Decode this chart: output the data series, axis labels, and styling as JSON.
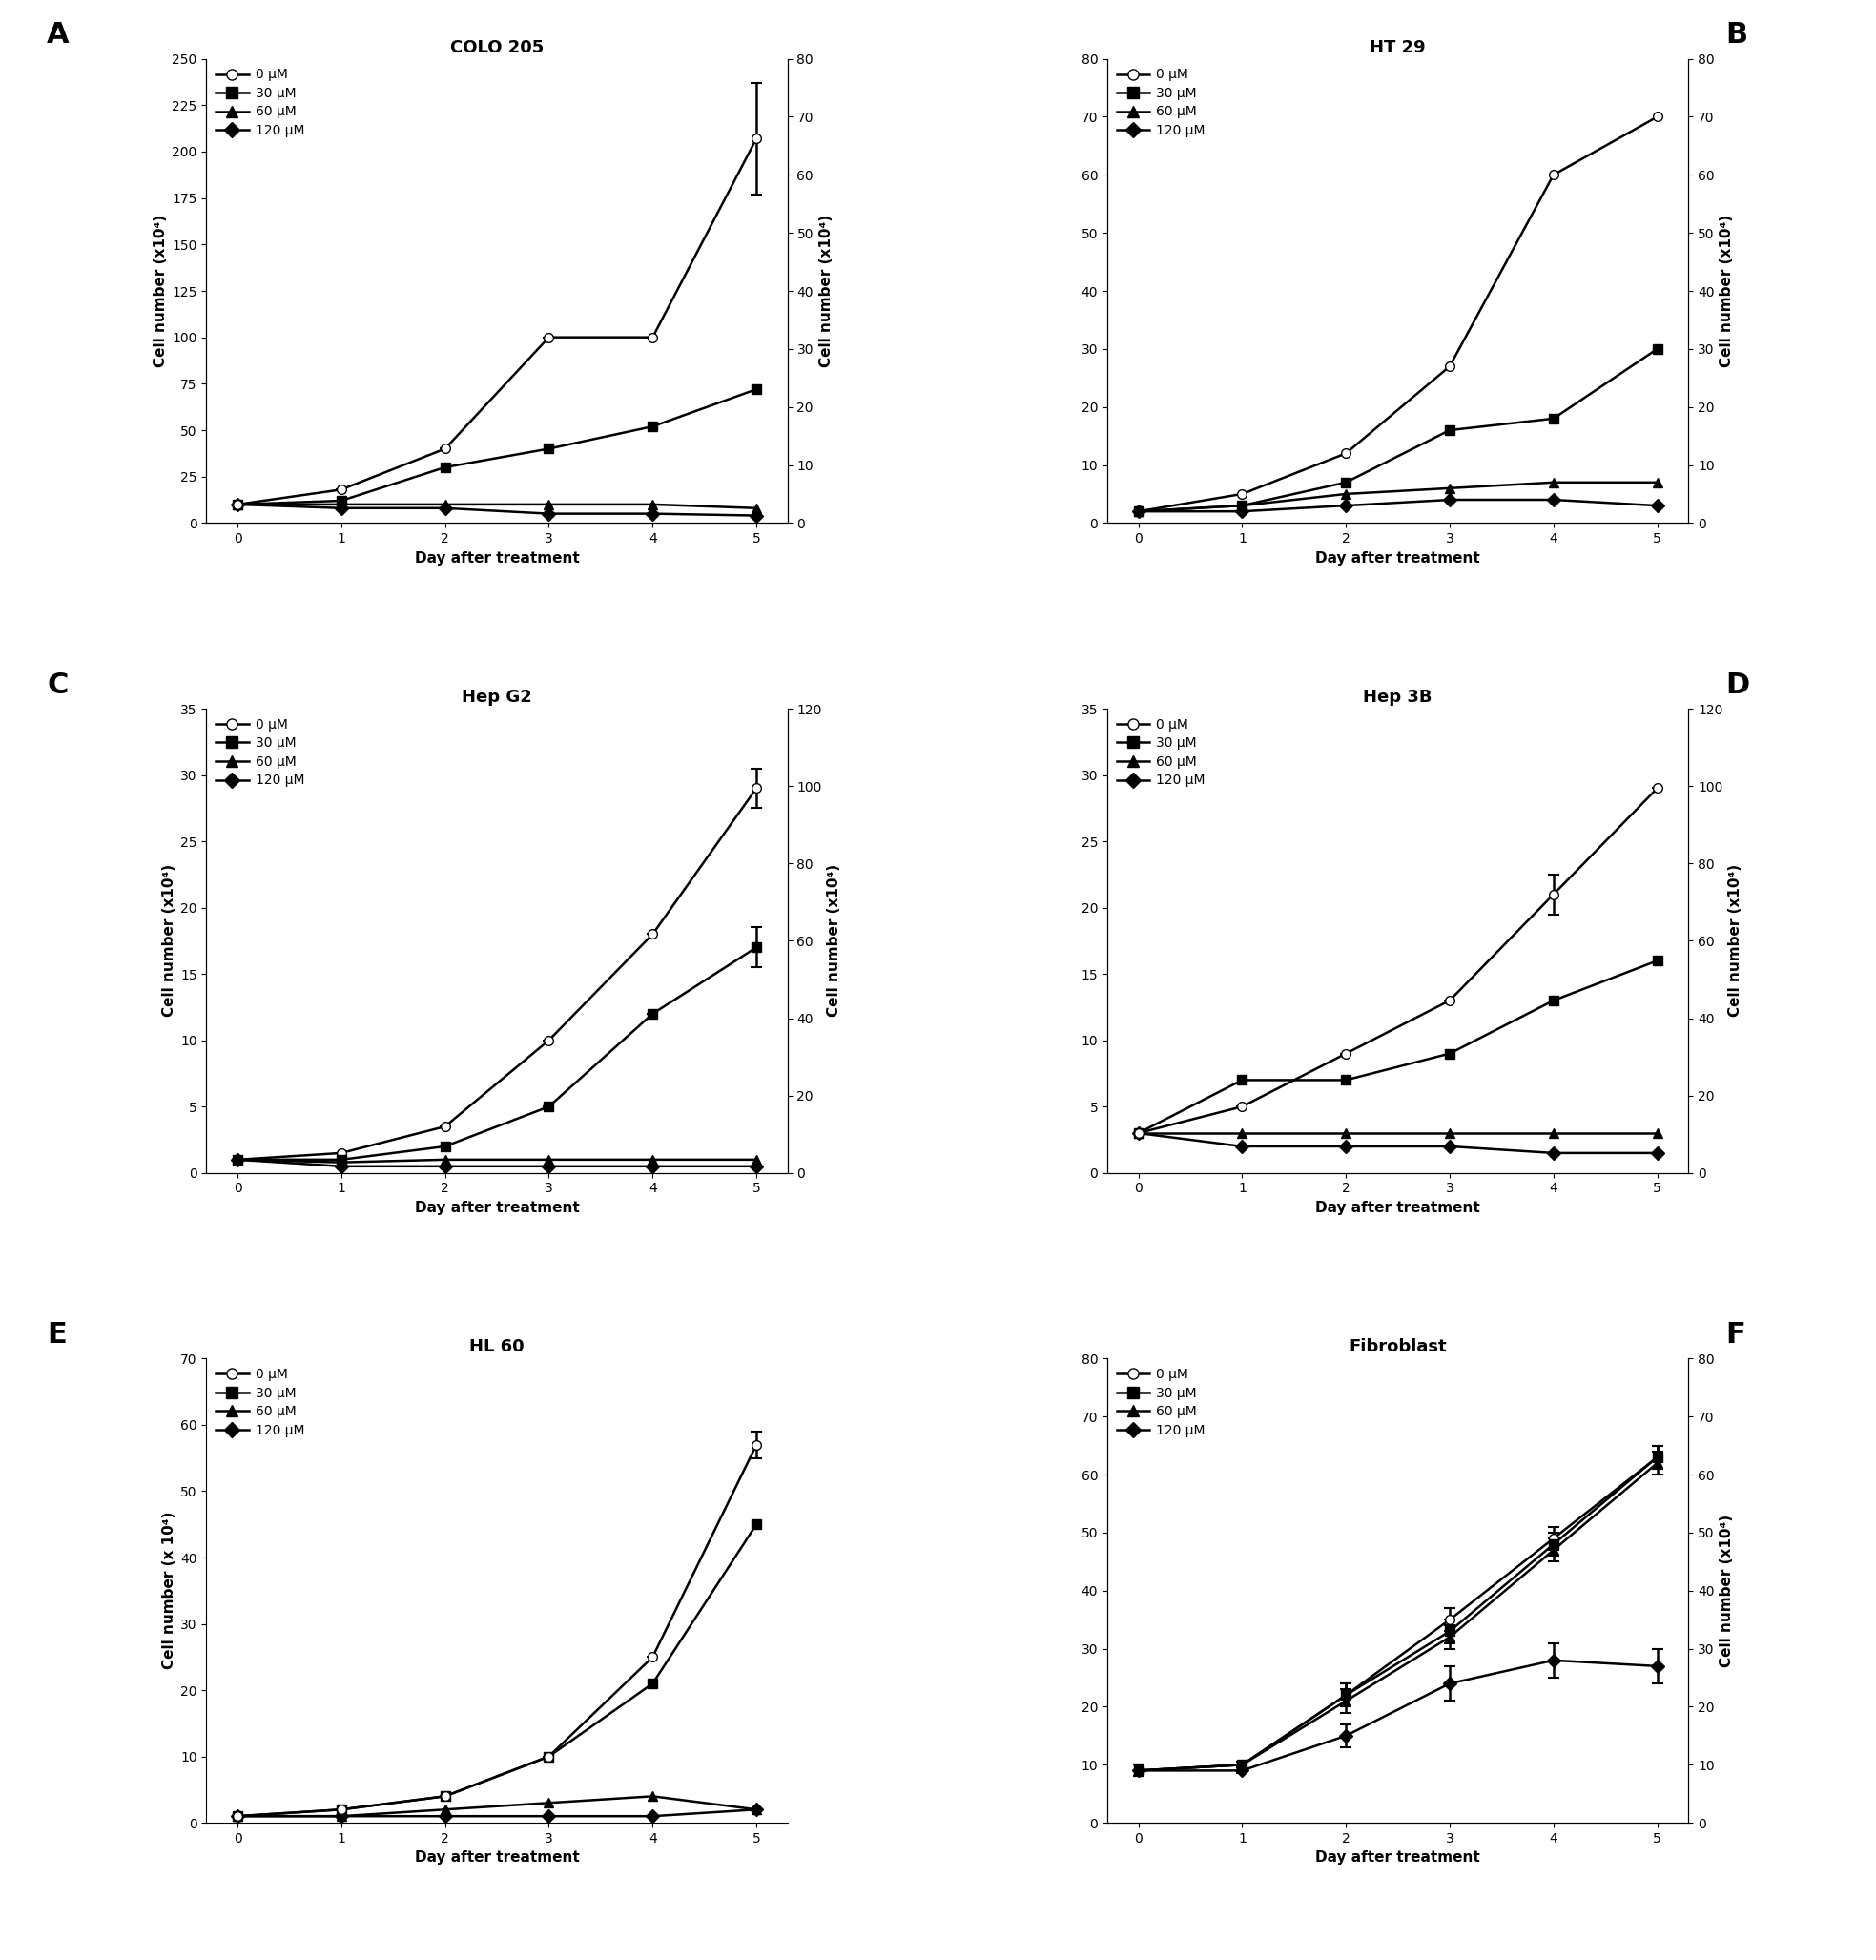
{
  "panels": [
    {
      "label": "A",
      "title": "COLO 205",
      "ylabel_left": "Cell number (x10⁴)",
      "ylim_left": [
        0,
        250
      ],
      "yticks_left": [
        0,
        25,
        50,
        75,
        100,
        125,
        150,
        175,
        200,
        225,
        250
      ],
      "ylabel_right": "Cell number (x10⁴)",
      "ylim_right": [
        0,
        80
      ],
      "yticks_right": [
        0,
        10,
        20,
        30,
        40,
        50,
        60,
        70,
        80
      ],
      "show_right": true,
      "days": [
        0,
        1,
        2,
        3,
        4,
        5
      ],
      "series_0": [
        10,
        18,
        40,
        100,
        100,
        207
      ],
      "series_30": [
        10,
        12,
        30,
        40,
        52,
        72
      ],
      "series_60": [
        10,
        10,
        10,
        10,
        10,
        8
      ],
      "series_120": [
        10,
        8,
        8,
        5,
        5,
        4
      ],
      "errors_0": [
        0,
        0,
        0,
        0,
        0,
        30
      ],
      "errors_30": [
        0,
        0,
        0,
        0,
        0,
        0
      ],
      "errors_60": [
        0,
        0,
        0,
        0,
        0,
        0
      ],
      "errors_120": [
        0,
        0,
        0,
        0,
        0,
        0
      ]
    },
    {
      "label": "B",
      "title": "HT 29",
      "ylabel_left": "",
      "ylim_left": [
        0,
        80
      ],
      "yticks_left": [],
      "ylabel_right": "Cell number (x10⁴)",
      "ylim_right": [
        0,
        80
      ],
      "yticks_right": [
        0,
        10,
        20,
        30,
        40,
        50,
        60,
        70,
        80
      ],
      "show_right": true,
      "days": [
        0,
        1,
        2,
        3,
        4,
        5
      ],
      "series_0": [
        2,
        5,
        12,
        27,
        60,
        70
      ],
      "series_30": [
        2,
        3,
        7,
        16,
        18,
        30
      ],
      "series_60": [
        2,
        3,
        5,
        6,
        7,
        7
      ],
      "series_120": [
        2,
        2,
        3,
        4,
        4,
        3
      ],
      "errors_0": [
        0,
        0,
        0,
        0,
        0,
        0
      ],
      "errors_30": [
        0,
        0,
        0,
        0,
        0,
        0
      ],
      "errors_60": [
        0,
        0,
        0,
        0,
        0,
        0
      ],
      "errors_120": [
        0,
        0,
        0,
        0,
        0,
        0
      ]
    },
    {
      "label": "C",
      "title": "Hep G2",
      "ylabel_left": "Cell number (x10⁴)",
      "ylim_left": [
        0,
        35
      ],
      "yticks_left": [
        0,
        5,
        10,
        15,
        20,
        25,
        30,
        35
      ],
      "ylabel_right": "Cell number (x10⁴)",
      "ylim_right": [
        0,
        120
      ],
      "yticks_right": [
        0,
        20,
        40,
        60,
        80,
        100,
        120
      ],
      "show_right": true,
      "days": [
        0,
        1,
        2,
        3,
        4,
        5
      ],
      "series_0": [
        1,
        1.5,
        3.5,
        10,
        18,
        29
      ],
      "series_30": [
        1,
        1,
        2,
        5,
        12,
        17
      ],
      "series_60": [
        1,
        0.8,
        1,
        1,
        1,
        1
      ],
      "series_120": [
        1,
        0.5,
        0.5,
        0.5,
        0.5,
        0.5
      ],
      "errors_0": [
        0,
        0,
        0,
        0,
        0,
        1.5
      ],
      "errors_30": [
        0,
        0,
        0,
        0,
        0,
        1.5
      ],
      "errors_60": [
        0,
        0,
        0,
        0,
        0,
        0
      ],
      "errors_120": [
        0,
        0,
        0,
        0,
        0,
        0
      ]
    },
    {
      "label": "D",
      "title": "Hep 3B",
      "ylabel_left": "",
      "ylim_left": [
        0,
        35
      ],
      "yticks_left": [],
      "ylabel_right": "Cell number (x10⁴)",
      "ylim_right": [
        0,
        120
      ],
      "yticks_right": [
        0,
        20,
        40,
        60,
        80,
        100,
        120
      ],
      "show_right": true,
      "days": [
        0,
        1,
        2,
        3,
        4,
        5
      ],
      "series_0": [
        3,
        5,
        9,
        13,
        21,
        29
      ],
      "series_30": [
        3,
        7,
        7,
        9,
        13,
        16
      ],
      "series_60": [
        3,
        3,
        3,
        3,
        3,
        3
      ],
      "series_120": [
        3,
        2,
        2,
        2,
        1.5,
        1.5
      ],
      "errors_0": [
        0,
        0,
        0,
        0,
        1.5,
        0
      ],
      "errors_30": [
        0,
        0,
        0,
        0,
        0,
        0
      ],
      "errors_60": [
        0,
        0,
        0,
        0,
        0,
        0
      ],
      "errors_120": [
        0,
        0,
        0,
        0,
        0,
        0
      ]
    },
    {
      "label": "E",
      "title": "HL 60",
      "ylabel_left": "Cell number (x 10⁴)",
      "ylim_left": [
        0,
        70
      ],
      "yticks_left": [
        0,
        10,
        20,
        30,
        40,
        50,
        60,
        70
      ],
      "ylabel_right": "",
      "ylim_right": [
        0,
        70
      ],
      "yticks_right": [],
      "show_right": false,
      "days": [
        0,
        1,
        2,
        3,
        4,
        5
      ],
      "series_0": [
        1,
        2,
        4,
        10,
        25,
        57
      ],
      "series_30": [
        1,
        2,
        4,
        10,
        21,
        45
      ],
      "series_60": [
        1,
        1,
        2,
        3,
        4,
        2
      ],
      "series_120": [
        1,
        1,
        1,
        1,
        1,
        2
      ],
      "errors_0": [
        0,
        0,
        0,
        0,
        0,
        2
      ],
      "errors_30": [
        0,
        0,
        0,
        0,
        0,
        0
      ],
      "errors_60": [
        0,
        0,
        0,
        0,
        0,
        0
      ],
      "errors_120": [
        0,
        0,
        0,
        0,
        0,
        0
      ]
    },
    {
      "label": "F",
      "title": "Fibroblast",
      "ylabel_left": "",
      "ylim_left": [
        0,
        80
      ],
      "yticks_left": [],
      "ylabel_right": "Cell number (x10⁴)",
      "ylim_right": [
        0,
        80
      ],
      "yticks_right": [
        0,
        10,
        20,
        30,
        40,
        50,
        60,
        70,
        80
      ],
      "show_right": true,
      "days": [
        0,
        1,
        2,
        3,
        4,
        5
      ],
      "series_0": [
        9,
        10,
        22,
        35,
        49,
        63
      ],
      "series_30": [
        9,
        10,
        22,
        33,
        48,
        63
      ],
      "series_60": [
        9,
        10,
        21,
        32,
        47,
        62
      ],
      "series_120": [
        9,
        9,
        15,
        24,
        28,
        27
      ],
      "errors_0": [
        1,
        0.5,
        2,
        2,
        2,
        2
      ],
      "errors_30": [
        1,
        0.5,
        2,
        2,
        2,
        2
      ],
      "errors_60": [
        1,
        0.5,
        2,
        2,
        2,
        2
      ],
      "errors_120": [
        1,
        0.5,
        2,
        3,
        3,
        3
      ]
    }
  ],
  "doses": [
    "0",
    "30",
    "60",
    "120"
  ],
  "markers": [
    "o",
    "s",
    "^",
    "D"
  ],
  "fillstyles": [
    "none",
    "full",
    "full",
    "full"
  ],
  "xlabel": "Day after treatment",
  "linewidth": 1.8,
  "markersize": 7,
  "fontsize_title": 13,
  "fontsize_label": 11,
  "fontsize_tick": 10,
  "fontsize_legend": 10,
  "fontsize_panel": 22,
  "cap_size": 4
}
